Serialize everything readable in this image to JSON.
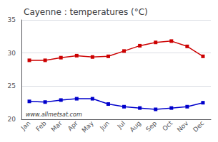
{
  "chart_data": {
    "type": "line",
    "title": "Cayenne : temperatures (°C)",
    "categories": [
      "Jan",
      "Feb",
      "Mar",
      "Apr",
      "May",
      "Jun",
      "Jul",
      "Aug",
      "Sep",
      "Oct",
      "Nov",
      "Dec"
    ],
    "series": [
      {
        "color": "#cc0000",
        "values": [
          28.9,
          28.9,
          29.3,
          29.6,
          29.4,
          29.5,
          30.3,
          31.1,
          31.6,
          31.8,
          31.0,
          29.5
        ]
      },
      {
        "color": "#0000cc",
        "values": [
          22.7,
          22.6,
          22.9,
          23.1,
          23.1,
          22.3,
          21.9,
          21.7,
          21.5,
          21.7,
          21.9,
          22.5
        ]
      }
    ],
    "marker": "square",
    "ylim": [
      20,
      35
    ],
    "yticks": [
      20,
      25,
      30,
      35
    ],
    "grid": true,
    "annotations": [
      "www.allmetsat.com"
    ]
  }
}
